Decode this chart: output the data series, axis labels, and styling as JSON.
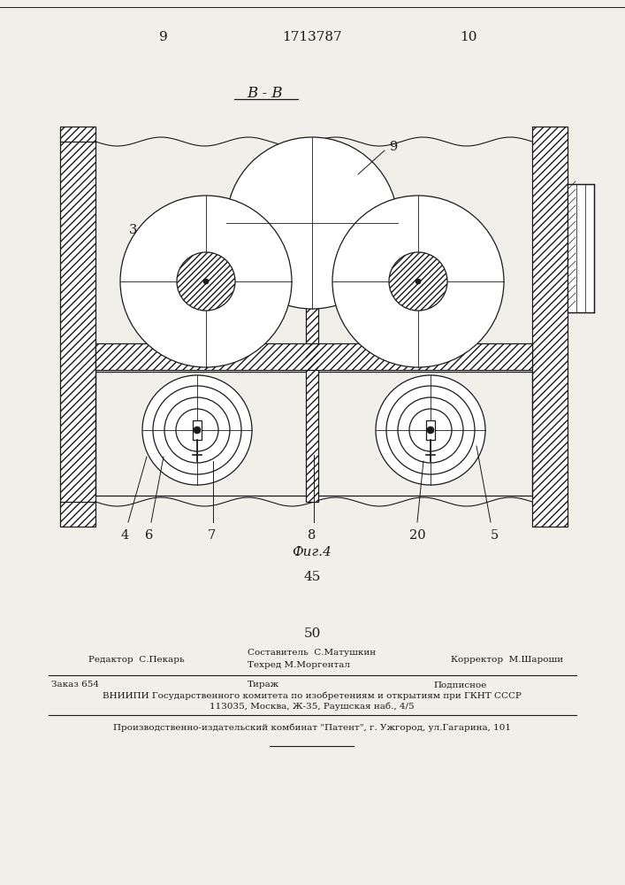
{
  "page_num_left": "9",
  "page_num_center": "1713787",
  "page_num_right": "10",
  "section_label": "B - B",
  "fig_label": "Фиг.4",
  "fig_number": "45",
  "col_number": "50",
  "footer_line1_left": "Редактор  С.Пекарь",
  "footer_line1_center1": "Составитель  С.Матушкин",
  "footer_line1_center2": "Техред М.Моргентал",
  "footer_line1_right": "Корректор  М.Шароши",
  "footer_line2_col1": "Заказ 654",
  "footer_line2_col2": "Тираж",
  "footer_line2_col3": "Подписное",
  "footer_line3": "ВНИИПИ Государственного комитета по изобретениям и открытиям при ГКНТ СССР",
  "footer_line4": "113035, Москва, Ж-35, Раушская наб., 4/5",
  "footer_line5": "Производственно-издательский комбинат \"Патент\", г. Ужгород, ул.Гагарина, 101",
  "bg_color": "#f0efea",
  "line_color": "#1a1a1a"
}
